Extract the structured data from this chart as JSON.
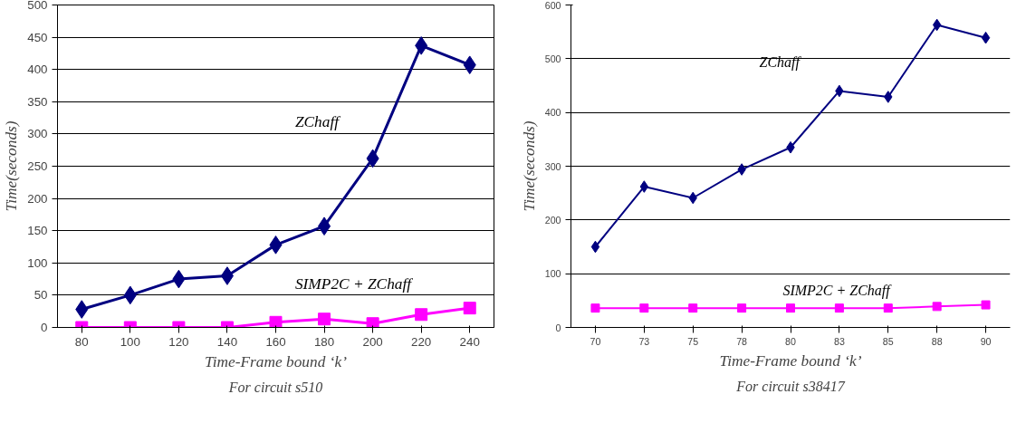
{
  "chart_data": [
    {
      "type": "line",
      "categories": [
        "80",
        "100",
        "120",
        "140",
        "160",
        "180",
        "200",
        "220",
        "240"
      ],
      "xlabel": "Time-Frame bound ‘k’",
      "ylabel": "Time(seconds)",
      "ylim": [
        0,
        500
      ],
      "yticks": [
        0,
        50,
        100,
        150,
        200,
        250,
        300,
        350,
        400,
        450,
        500
      ],
      "grid": "y",
      "annotations": [
        "For circuit s510"
      ],
      "series": [
        {
          "name": "ZChaff",
          "color": "#000080",
          "marker": "diamond",
          "values": [
            28,
            50,
            75,
            80,
            128,
            157,
            262,
            437,
            407
          ]
        },
        {
          "name": "SIMP2C +  ZChaff",
          "color": "#ff00ff",
          "marker": "square",
          "values": [
            0,
            0,
            0,
            0,
            8,
            13,
            6,
            20,
            30
          ]
        }
      ]
    },
    {
      "type": "line",
      "categories": [
        "70",
        "73",
        "75",
        "78",
        "80",
        "83",
        "85",
        "88",
        "90"
      ],
      "xlabel": "Time-Frame bound ‘k’",
      "ylabel": "Time(seconds)",
      "ylim": [
        0,
        600
      ],
      "yticks": [
        0,
        100,
        200,
        300,
        400,
        500,
        600
      ],
      "grid": "y",
      "annotations": [
        "For circuit s38417"
      ],
      "series": [
        {
          "name": "ZChaff",
          "color": "#000080",
          "marker": "diamond",
          "values": [
            150,
            262,
            241,
            294,
            335,
            440,
            429,
            563,
            539
          ]
        },
        {
          "name": "SIMP2C +  ZChaff",
          "color": "#ff00ff",
          "marker": "square",
          "values": [
            36,
            36,
            36,
            36,
            36,
            36,
            36,
            39,
            42
          ]
        }
      ]
    }
  ]
}
